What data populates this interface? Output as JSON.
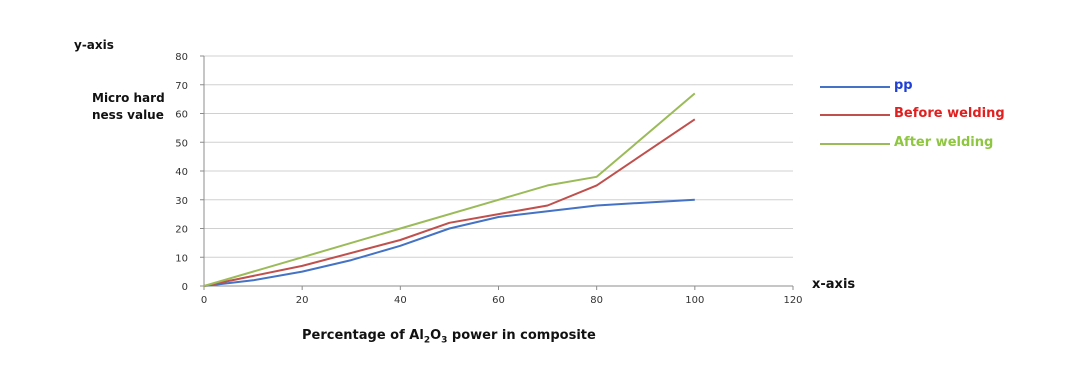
{
  "chart_data": {
    "type": "line",
    "y_top_label": "y-axis",
    "ylabel_line1": "Micro hard",
    "ylabel_line2": "ness value",
    "x_right_label": "x-axis",
    "xlabel_prefix": "Percentage of Al",
    "xlabel_sub1": "2",
    "xlabel_mid": "O",
    "xlabel_sub2": "3",
    "xlabel_suffix": " power in composite",
    "xlim": [
      0,
      120
    ],
    "ylim": [
      0,
      80
    ],
    "x_ticks": [
      0,
      20,
      40,
      60,
      80,
      100,
      120
    ],
    "y_ticks": [
      0,
      10,
      20,
      30,
      40,
      50,
      60,
      70,
      80
    ],
    "grid": true,
    "legend_position": "right",
    "series": [
      {
        "name": "pp",
        "color": "#4472c4",
        "x": [
          0,
          10,
          20,
          30,
          40,
          50,
          60,
          70,
          80,
          90,
          100
        ],
        "y": [
          0,
          2,
          5,
          9,
          14,
          20,
          24,
          26,
          28,
          29,
          30
        ]
      },
      {
        "name": "Before welding",
        "color": "#c0504d",
        "x": [
          0,
          20,
          40,
          50,
          60,
          70,
          80,
          100
        ],
        "y": [
          0,
          7,
          16,
          22,
          25,
          28,
          35,
          58
        ]
      },
      {
        "name": "After welding",
        "color": "#9bbb59",
        "x": [
          0,
          20,
          40,
          60,
          70,
          80,
          100
        ],
        "y": [
          0,
          10,
          20,
          30,
          35,
          38,
          67
        ]
      }
    ]
  },
  "legend_text_colors": [
    "#1f3fd6",
    "#e02020",
    "#8ec63f"
  ]
}
